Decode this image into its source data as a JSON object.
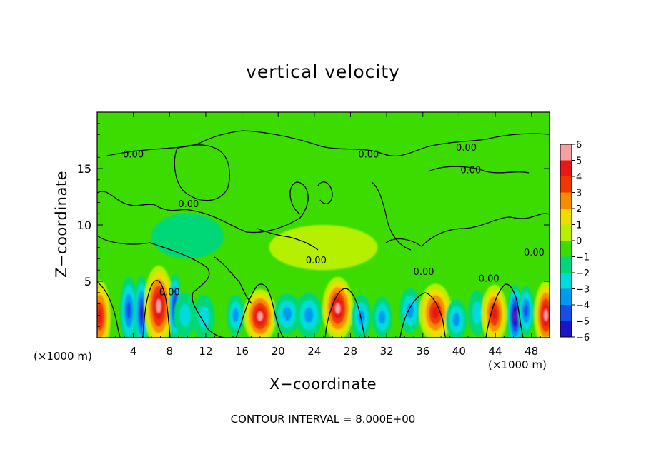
{
  "chart_data": {
    "type": "heatmap",
    "title": "vertical velocity",
    "xlabel": "X−coordinate",
    "ylabel": "Z−coordinate",
    "x_unit_left": "(×1000 m)",
    "x_unit_right": "(×1000 m)",
    "note": "CONTOUR INTERVAL = 8.000E+00",
    "xlim": [
      0,
      50
    ],
    "ylim": [
      0,
      20
    ],
    "x_ticks": [
      4,
      8,
      12,
      16,
      20,
      24,
      28,
      32,
      36,
      40,
      44,
      48
    ],
    "y_ticks": [
      5,
      10,
      15
    ],
    "contour_label": "0.00",
    "colorbar": {
      "levels": [
        6,
        5,
        4,
        3,
        2,
        1,
        0,
        -1,
        -2,
        -3,
        -4,
        -5,
        -6
      ],
      "labels": [
        "6",
        "5",
        "4",
        "3",
        "2",
        "1",
        "0",
        "−1",
        "−2",
        "−3",
        "−4",
        "−5",
        "−6"
      ],
      "colors": [
        "#f4a0a0",
        "#e81818",
        "#f03800",
        "#f88c00",
        "#f0dc00",
        "#b4f000",
        "#3cdc00",
        "#00d878",
        "#00dcdc",
        "#0098f0",
        "#1450e8",
        "#1c14c8",
        "#7814a8"
      ]
    },
    "features": [
      {
        "x": 0.3,
        "z": 1.9,
        "w": 1.2,
        "h": 3.2,
        "v": 5.0
      },
      {
        "x": 3.5,
        "z": 2.4,
        "w": 1.0,
        "h": 3.0,
        "v": -3.5
      },
      {
        "x": 4.9,
        "z": 2.2,
        "w": 0.8,
        "h": 3.3,
        "v": -5.0
      },
      {
        "x": 6.8,
        "z": 2.8,
        "w": 1.6,
        "h": 3.6,
        "v": 6.0
      },
      {
        "x": 8.6,
        "z": 2.7,
        "w": 0.7,
        "h": 3.0,
        "v": -4.5
      },
      {
        "x": 9.7,
        "z": 2.0,
        "w": 1.2,
        "h": 2.0,
        "v": -2.0
      },
      {
        "x": 11.8,
        "z": 1.8,
        "w": 1.2,
        "h": 2.0,
        "v": -1.5
      },
      {
        "x": 15.3,
        "z": 2.0,
        "w": 1.0,
        "h": 1.8,
        "v": -3.2
      },
      {
        "x": 18.0,
        "z": 1.9,
        "w": 1.8,
        "h": 2.4,
        "v": 6.0
      },
      {
        "x": 21.0,
        "z": 2.1,
        "w": 1.5,
        "h": 1.8,
        "v": -2.8
      },
      {
        "x": 23.4,
        "z": 2.0,
        "w": 1.5,
        "h": 2.0,
        "v": -3.0
      },
      {
        "x": 26.6,
        "z": 2.6,
        "w": 1.7,
        "h": 2.8,
        "v": 6.0
      },
      {
        "x": 29.2,
        "z": 1.8,
        "w": 1.1,
        "h": 2.0,
        "v": -3.0
      },
      {
        "x": 31.5,
        "z": 1.8,
        "w": 1.1,
        "h": 1.8,
        "v": -2.5
      },
      {
        "x": 34.6,
        "z": 2.4,
        "w": 1.2,
        "h": 2.0,
        "v": -2.8
      },
      {
        "x": 37.4,
        "z": 2.2,
        "w": 1.8,
        "h": 2.6,
        "v": 4.8
      },
      {
        "x": 39.7,
        "z": 1.6,
        "w": 1.2,
        "h": 1.8,
        "v": -2.8
      },
      {
        "x": 42.0,
        "z": 2.2,
        "w": 1.0,
        "h": 2.0,
        "v": -2.0
      },
      {
        "x": 43.9,
        "z": 2.1,
        "w": 1.4,
        "h": 2.6,
        "v": 4.6
      },
      {
        "x": 46.2,
        "z": 1.9,
        "w": 0.9,
        "h": 2.8,
        "v": -6.0
      },
      {
        "x": 47.4,
        "z": 2.4,
        "w": 0.9,
        "h": 2.2,
        "v": -3.5
      },
      {
        "x": 49.6,
        "z": 2.0,
        "w": 1.3,
        "h": 3.0,
        "v": 6.0
      },
      {
        "x": 25.0,
        "z": 8.0,
        "w": 6.0,
        "h": 2.0,
        "v": 0.4
      },
      {
        "x": 10.0,
        "z": 9.0,
        "w": 4.0,
        "h": 2.0,
        "v": -0.3
      }
    ],
    "contour_label_positions": [
      {
        "x": 4.0,
        "z": 16.2
      },
      {
        "x": 30.0,
        "z": 16.2
      },
      {
        "x": 40.8,
        "z": 16.8
      },
      {
        "x": 41.3,
        "z": 14.8
      },
      {
        "x": 10.1,
        "z": 11.8
      },
      {
        "x": 8.0,
        "z": 4.0
      },
      {
        "x": 24.2,
        "z": 6.8
      },
      {
        "x": 36.1,
        "z": 5.8
      },
      {
        "x": 43.3,
        "z": 5.2
      },
      {
        "x": 48.3,
        "z": 7.5
      }
    ]
  }
}
